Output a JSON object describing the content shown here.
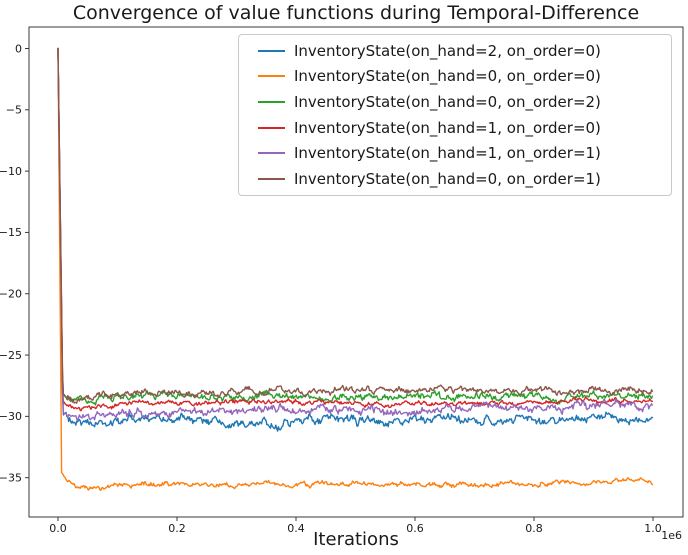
{
  "chart_data": {
    "type": "line",
    "title": "Convergence of value functions during Temporal-Difference",
    "xlabel": "Iterations",
    "ylabel": "",
    "x_offset_label": "1e6",
    "xlim": [
      -0.05,
      1.05
    ],
    "ylim": [
      -38.3,
      1.8
    ],
    "grid": false,
    "legend_position": "upper right",
    "xticks": [
      {
        "label": "0.0",
        "value": 0.0
      },
      {
        "label": "0.2",
        "value": 0.2
      },
      {
        "label": "0.4",
        "value": 0.4
      },
      {
        "label": "0.6",
        "value": 0.6
      },
      {
        "label": "0.8",
        "value": 0.8
      },
      {
        "label": "1.0",
        "value": 1.0
      }
    ],
    "yticks": [
      {
        "label": "0",
        "value": 0
      },
      {
        "label": "−5",
        "value": -5
      },
      {
        "label": "−10",
        "value": -10
      },
      {
        "label": "−15",
        "value": -15
      },
      {
        "label": "−20",
        "value": -20
      },
      {
        "label": "−25",
        "value": -25
      },
      {
        "label": "−30",
        "value": -30
      },
      {
        "label": "−35",
        "value": -35
      }
    ],
    "series": [
      {
        "name": "InventoryState(on_hand=2, on_order=0)",
        "color": "#1f77b4",
        "noise_amp": 0.33,
        "keypoints": [
          [
            0,
            0
          ],
          [
            0.008,
            -30.0
          ],
          [
            0.03,
            -30.8
          ],
          [
            0.1,
            -30.5
          ],
          [
            0.3,
            -30.3
          ],
          [
            0.6,
            -30.4
          ],
          [
            1.0,
            -30.3
          ]
        ]
      },
      {
        "name": "InventoryState(on_hand=0, on_order=0)",
        "color": "#ff7f0e",
        "noise_amp": 0.18,
        "keypoints": [
          [
            0,
            0
          ],
          [
            0.006,
            -34.5
          ],
          [
            0.03,
            -35.9
          ],
          [
            0.08,
            -35.9
          ],
          [
            0.15,
            -35.6
          ],
          [
            0.4,
            -35.6
          ],
          [
            0.7,
            -35.5
          ],
          [
            1.0,
            -35.4
          ]
        ]
      },
      {
        "name": "InventoryState(on_hand=0, on_order=2)",
        "color": "#2ca02c",
        "noise_amp": 0.26,
        "keypoints": [
          [
            0,
            0
          ],
          [
            0.008,
            -28.6
          ],
          [
            0.03,
            -28.9
          ],
          [
            0.1,
            -28.6
          ],
          [
            0.3,
            -28.4
          ],
          [
            0.6,
            -28.4
          ],
          [
            0.85,
            -28.2
          ],
          [
            1.0,
            -28.3
          ]
        ]
      },
      {
        "name": "InventoryState(on_hand=1, on_order=0)",
        "color": "#d62728",
        "noise_amp": 0.17,
        "keypoints": [
          [
            0,
            0
          ],
          [
            0.008,
            -29.0
          ],
          [
            0.03,
            -29.4
          ],
          [
            0.1,
            -29.0
          ],
          [
            0.3,
            -28.9
          ],
          [
            0.6,
            -28.9
          ],
          [
            1.0,
            -28.85
          ]
        ]
      },
      {
        "name": "InventoryState(on_hand=1, on_order=1)",
        "color": "#9467bd",
        "noise_amp": 0.3,
        "keypoints": [
          [
            0,
            0
          ],
          [
            0.008,
            -29.6
          ],
          [
            0.03,
            -30.2
          ],
          [
            0.1,
            -29.6
          ],
          [
            0.3,
            -29.4
          ],
          [
            0.6,
            -29.4
          ],
          [
            1.0,
            -29.35
          ]
        ]
      },
      {
        "name": "InventoryState(on_hand=0, on_order=1)",
        "color": "#8c564b",
        "noise_amp": 0.24,
        "keypoints": [
          [
            0,
            0
          ],
          [
            0.008,
            -28.2
          ],
          [
            0.03,
            -28.5
          ],
          [
            0.1,
            -28.1
          ],
          [
            0.3,
            -27.9
          ],
          [
            0.6,
            -27.9
          ],
          [
            1.0,
            -27.8
          ]
        ]
      }
    ]
  }
}
